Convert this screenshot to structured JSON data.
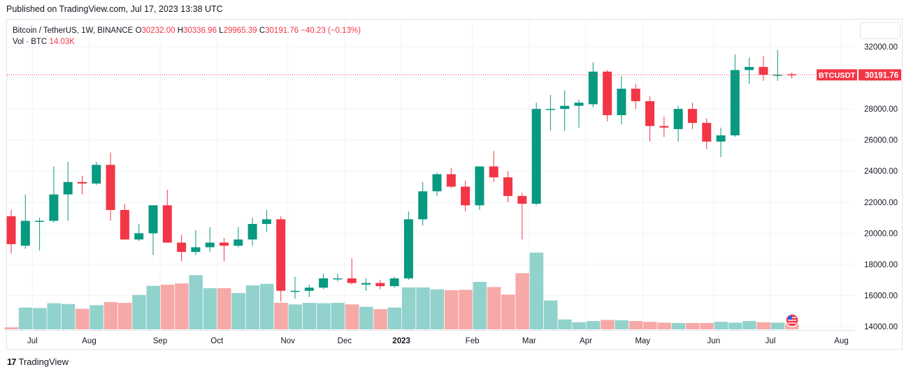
{
  "header": {
    "published": "Published on TradingView.com, Jul 17, 2023 13:38 UTC"
  },
  "legend": {
    "symbol": "Bitcoin / TetherUS, 1W, BINANCE",
    "o_label": "O",
    "o_value": "30232.00",
    "h_label": "H",
    "h_value": "30336.96",
    "l_label": "L",
    "l_value": "29965.39",
    "c_label": "C",
    "c_value": "30191.76",
    "change": "−40.23 (−0.13%)",
    "vol_label": "Vol · BTC",
    "vol_value": "14.03K"
  },
  "price_tag": {
    "label": "BTCUSDT",
    "value": "30191.76"
  },
  "footer": {
    "brand": "TradingView",
    "logo": "17"
  },
  "colors": {
    "up": "#089981",
    "down": "#f23645",
    "vol_up": "#92d2cc",
    "vol_down": "#f7a9a7",
    "grid": "#f0f3fa"
  },
  "chart_data": {
    "type": "candlestick",
    "interval": "1W",
    "ylim": [
      13800,
      32800
    ],
    "y_ticks": [
      14000,
      16000,
      18000,
      20000,
      22000,
      24000,
      26000,
      28000,
      30000,
      32000
    ],
    "y_tick_labels": [
      "14000.00",
      "16000.00",
      "18000.00",
      "20000.00",
      "22000.00",
      "24000.00",
      "26000.00",
      "28000.00",
      "30000.00",
      "32000.00"
    ],
    "x_labels": [
      {
        "label": "Jul",
        "index": 1
      },
      {
        "label": "Aug",
        "index": 5
      },
      {
        "label": "Sep",
        "index": 10
      },
      {
        "label": "Oct",
        "index": 14
      },
      {
        "label": "Nov",
        "index": 19
      },
      {
        "label": "Dec",
        "index": 23
      },
      {
        "label": "2023",
        "index": 27
      },
      {
        "label": "Feb",
        "index": 32
      },
      {
        "label": "Mar",
        "index": 36
      },
      {
        "label": "Apr",
        "index": 40
      },
      {
        "label": "May",
        "index": 44
      },
      {
        "label": "Jun",
        "index": 49
      },
      {
        "label": "Jul",
        "index": 53
      },
      {
        "label": "Aug",
        "index": 58
      }
    ],
    "last_price": 30191.76,
    "candles": [
      {
        "o": 21100,
        "h": 21500,
        "l": 18700,
        "c": 19300
      },
      {
        "o": 19200,
        "h": 22500,
        "l": 19000,
        "c": 20800
      },
      {
        "o": 20800,
        "h": 21000,
        "l": 18900,
        "c": 20800
      },
      {
        "o": 20800,
        "h": 24300,
        "l": 20700,
        "c": 22500
      },
      {
        "o": 22500,
        "h": 24600,
        "l": 20800,
        "c": 23300
      },
      {
        "o": 23300,
        "h": 23700,
        "l": 22500,
        "c": 23200
      },
      {
        "o": 23200,
        "h": 24600,
        "l": 23100,
        "c": 24400
      },
      {
        "o": 24400,
        "h": 25200,
        "l": 20800,
        "c": 21500
      },
      {
        "o": 21500,
        "h": 21900,
        "l": 19600,
        "c": 19600
      },
      {
        "o": 19600,
        "h": 20600,
        "l": 19500,
        "c": 20000
      },
      {
        "o": 20000,
        "h": 21800,
        "l": 18600,
        "c": 21800
      },
      {
        "o": 21800,
        "h": 22800,
        "l": 19400,
        "c": 19400
      },
      {
        "o": 19400,
        "h": 19900,
        "l": 18200,
        "c": 18800
      },
      {
        "o": 18800,
        "h": 20200,
        "l": 18600,
        "c": 19100
      },
      {
        "o": 19100,
        "h": 20400,
        "l": 18800,
        "c": 19400
      },
      {
        "o": 19400,
        "h": 19700,
        "l": 18200,
        "c": 19200
      },
      {
        "o": 19200,
        "h": 20400,
        "l": 19100,
        "c": 19600
      },
      {
        "o": 19600,
        "h": 21000,
        "l": 19200,
        "c": 20600
      },
      {
        "o": 20600,
        "h": 21500,
        "l": 20100,
        "c": 20900
      },
      {
        "o": 20900,
        "h": 21100,
        "l": 15600,
        "c": 16300
      },
      {
        "o": 16300,
        "h": 17200,
        "l": 15800,
        "c": 16300
      },
      {
        "o": 16300,
        "h": 16700,
        "l": 15900,
        "c": 16500
      },
      {
        "o": 16500,
        "h": 17400,
        "l": 16400,
        "c": 17100
      },
      {
        "o": 17100,
        "h": 17400,
        "l": 16900,
        "c": 17100
      },
      {
        "o": 17100,
        "h": 18400,
        "l": 16700,
        "c": 16800
      },
      {
        "o": 16700,
        "h": 17100,
        "l": 16300,
        "c": 16800
      },
      {
        "o": 16800,
        "h": 17000,
        "l": 16400,
        "c": 16600
      },
      {
        "o": 16600,
        "h": 17200,
        "l": 16500,
        "c": 17100
      },
      {
        "o": 17100,
        "h": 21400,
        "l": 17000,
        "c": 20900
      },
      {
        "o": 20900,
        "h": 23300,
        "l": 20500,
        "c": 22700
      },
      {
        "o": 22700,
        "h": 23900,
        "l": 22400,
        "c": 23800
      },
      {
        "o": 23800,
        "h": 24200,
        "l": 22900,
        "c": 23000
      },
      {
        "o": 23000,
        "h": 23400,
        "l": 21400,
        "c": 21800
      },
      {
        "o": 21800,
        "h": 24300,
        "l": 21500,
        "c": 24300
      },
      {
        "o": 24300,
        "h": 25300,
        "l": 23300,
        "c": 23600
      },
      {
        "o": 23600,
        "h": 24000,
        "l": 22000,
        "c": 22400
      },
      {
        "o": 22400,
        "h": 22600,
        "l": 19600,
        "c": 21900
      },
      {
        "o": 21900,
        "h": 28400,
        "l": 21800,
        "c": 28000
      },
      {
        "o": 28000,
        "h": 28900,
        "l": 26600,
        "c": 28000
      },
      {
        "o": 28000,
        "h": 29200,
        "l": 26600,
        "c": 28200
      },
      {
        "o": 28200,
        "h": 28600,
        "l": 26800,
        "c": 28400
      },
      {
        "o": 28300,
        "h": 31000,
        "l": 28100,
        "c": 30400
      },
      {
        "o": 30400,
        "h": 30500,
        "l": 27200,
        "c": 27600
      },
      {
        "o": 27600,
        "h": 30100,
        "l": 27000,
        "c": 29300
      },
      {
        "o": 29300,
        "h": 29600,
        "l": 28000,
        "c": 28500
      },
      {
        "o": 28500,
        "h": 28800,
        "l": 25900,
        "c": 26900
      },
      {
        "o": 26900,
        "h": 27500,
        "l": 26200,
        "c": 26800
      },
      {
        "o": 26700,
        "h": 28200,
        "l": 25900,
        "c": 28000
      },
      {
        "o": 28000,
        "h": 28400,
        "l": 26700,
        "c": 27100
      },
      {
        "o": 27100,
        "h": 27400,
        "l": 25400,
        "c": 25900
      },
      {
        "o": 25900,
        "h": 26800,
        "l": 24900,
        "c": 26300
      },
      {
        "o": 26300,
        "h": 31500,
        "l": 26200,
        "c": 30500
      },
      {
        "o": 30500,
        "h": 31300,
        "l": 29600,
        "c": 30700
      },
      {
        "o": 30700,
        "h": 31400,
        "l": 29800,
        "c": 30200
      },
      {
        "o": 30200,
        "h": 31800,
        "l": 29800,
        "c": 30200
      },
      {
        "o": 30232,
        "h": 30337,
        "l": 29965,
        "c": 30192
      }
    ],
    "volume": [
      5,
      55,
      54,
      66,
      64,
      52,
      61,
      69,
      67,
      87,
      110,
      113,
      116,
      137,
      104,
      104,
      92,
      111,
      115,
      67,
      63,
      67,
      66,
      67,
      63,
      57,
      51,
      55,
      106,
      106,
      101,
      99,
      100,
      120,
      107,
      88,
      142,
      194,
      73,
      25,
      18,
      21,
      24,
      23,
      21,
      19,
      17,
      16,
      16,
      16,
      19,
      17,
      21,
      18,
      17,
      14
    ]
  }
}
